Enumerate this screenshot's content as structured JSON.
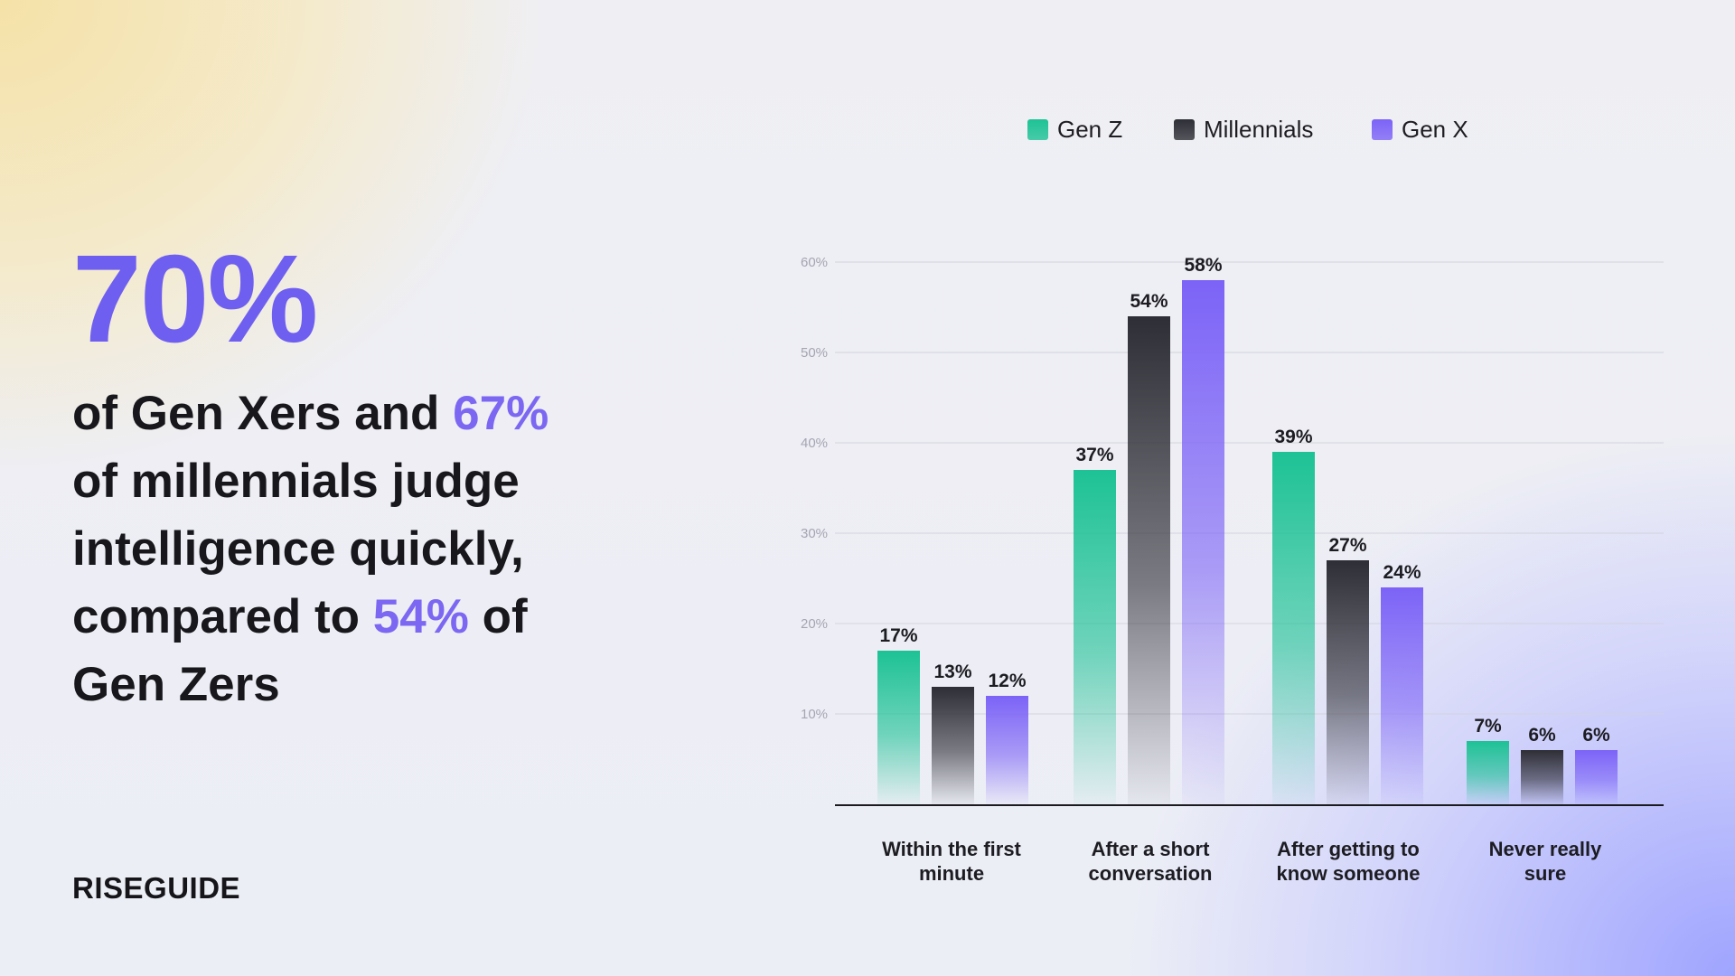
{
  "headline": {
    "big_stat": "70%",
    "line1_part1": "of Gen Xers and ",
    "line1_highlight": "67%",
    "line2": "of millennials judge",
    "line3": "intelligence quickly,",
    "line4_part1": "compared to ",
    "line4_highlight": "54%",
    "line4_part2": " of",
    "line5": "Gen Zers"
  },
  "brand": {
    "name": "RISEGUIDE"
  },
  "colors": {
    "accent": "#6f5ff0",
    "gen_z": "#1dc295",
    "millennials": "#2e2e36",
    "gen_x": "#7c63f7"
  },
  "chart_data": {
    "type": "bar",
    "categories": [
      "Within the first minute",
      "After a short conversation",
      "After getting to know someone",
      "Never really sure"
    ],
    "category_lines": [
      [
        "Within the first",
        "minute"
      ],
      [
        "After a short",
        "conversation"
      ],
      [
        "After getting to",
        "know someone"
      ],
      [
        "Never really",
        "sure"
      ]
    ],
    "series": [
      {
        "name": "Gen Z",
        "values": [
          17,
          37,
          39,
          7
        ],
        "labels": [
          "17%",
          "37%",
          "39%",
          "7%"
        ],
        "color": "#1dc295"
      },
      {
        "name": "Millennials",
        "values": [
          13,
          54,
          27,
          6
        ],
        "labels": [
          "13%",
          "54%",
          "27%",
          "6%"
        ],
        "color": "#2e2e36"
      },
      {
        "name": "Gen X",
        "values": [
          12,
          58,
          24,
          6
        ],
        "labels": [
          "12%",
          "58%",
          "24%",
          "6%"
        ],
        "color": "#7c63f7"
      }
    ],
    "yticks": [
      10,
      20,
      30,
      40,
      50,
      60
    ],
    "ytick_labels": [
      "10%",
      "20%",
      "30%",
      "40%",
      "50%",
      "60%"
    ],
    "ylim": [
      0,
      60
    ],
    "grid": true,
    "legend_position": "top-center"
  }
}
